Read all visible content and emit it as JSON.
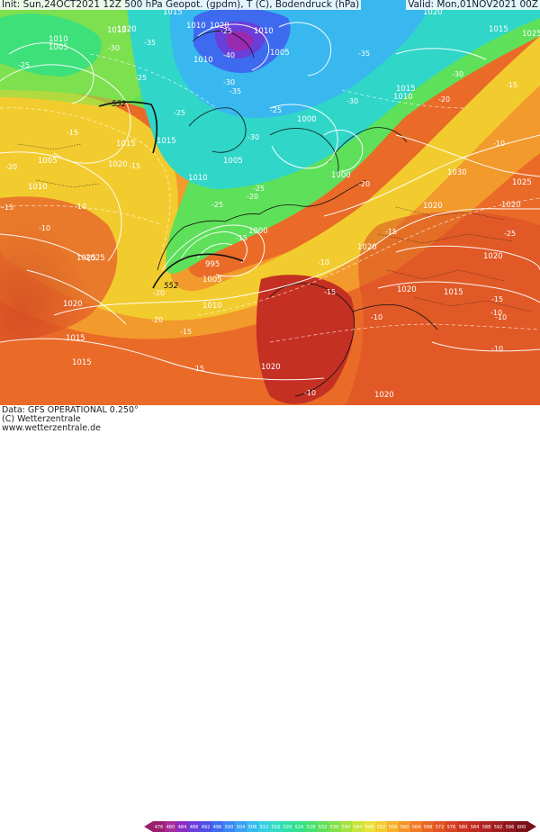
{
  "header": {
    "left": "Init: Sun,24OCT2021 12Z 500 hPa Geopot. (gpdm), T (C), Bodendruck (hPa)",
    "right": "Valid: Mon,01NOV2021 00Z"
  },
  "footer": {
    "line1": "Data: GFS OPERATIONAL 0.250°",
    "line2": "(C) Wetterzentrale",
    "line3": "www.wetterzentrale.de"
  },
  "colorbar": {
    "ticks": [
      "476",
      "480",
      "484",
      "488",
      "492",
      "496",
      "500",
      "504",
      "508",
      "512",
      "516",
      "520",
      "524",
      "528",
      "532",
      "536",
      "540",
      "544",
      "548",
      "552",
      "556",
      "560",
      "564",
      "568",
      "572",
      "576",
      "580",
      "584",
      "588",
      "592",
      "596",
      "600"
    ],
    "colors": [
      "#9a1e6e",
      "#a52a9a",
      "#8a2cc0",
      "#6a3ed8",
      "#4f4fe6",
      "#3d6aee",
      "#3b86f0",
      "#3aa0f2",
      "#37bbee",
      "#35d0e0",
      "#31dcc6",
      "#2fe0a6",
      "#34e08a",
      "#45e070",
      "#5fe05a",
      "#80e04a",
      "#a3e23e",
      "#c8e43a",
      "#e8e238",
      "#f4cc30",
      "#f6b02c",
      "#f49428",
      "#f07a26",
      "#ea6424",
      "#e25222",
      "#d84222",
      "#cc3422",
      "#bf2a22",
      "#b02222",
      "#a01c1e",
      "#8e161c",
      "#7c1018"
    ]
  },
  "map": {
    "pressure_labels": [
      "1010",
      "1005",
      "1020",
      "1015",
      "1010",
      "1015",
      "1005",
      "1020",
      "1010",
      "1025",
      "1015",
      "1020",
      "995",
      "1005",
      "1010",
      "1020",
      "1015",
      "1015",
      "1020",
      "1020",
      "1015",
      "1020",
      "1020",
      "1020",
      "1020",
      "1025",
      "1030",
      "1025",
      "1020",
      "1015",
      "1015",
      "1010",
      "1000",
      "1005",
      "1000",
      "1000",
      "1010",
      "1005",
      "1010",
      "1020",
      "1015",
      "1010",
      "1025"
    ],
    "temp_labels": [
      "-25",
      "-30",
      "-35",
      "-25",
      "-30",
      "-35",
      "-40",
      "-25",
      "-30",
      "-25",
      "-30",
      "-35",
      "-30",
      "-20",
      "-15",
      "-10",
      "-15",
      "-20",
      "-25",
      "-20",
      "-15",
      "-15",
      "-10",
      "-10",
      "-15",
      "-20",
      "-10",
      "-15",
      "-10",
      "-20",
      "-25",
      "-10",
      "-15",
      "-25",
      "-25",
      "-20",
      "-15",
      "-15",
      "-10",
      "-10",
      "-15",
      "-10"
    ],
    "height_labels": [
      "552",
      "552"
    ]
  }
}
